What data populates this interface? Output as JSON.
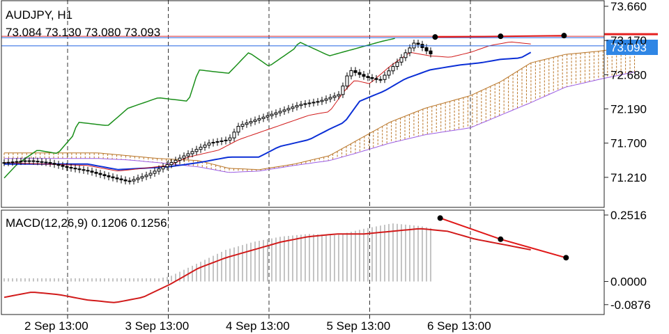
{
  "chart_data": [
    {
      "type": "candlestick",
      "title": "AUDJPY, H1",
      "ohlc_text": "73.084 73.130 73.080 73.093",
      "y_ticks": [
        "73.660",
        "73.170",
        "72.680",
        "72.190",
        "71.700",
        "71.210"
      ],
      "ylim": [
        70.78,
        73.75
      ],
      "current_price": 73.093,
      "current_price_label": "73.093",
      "x_ticks": [
        "2 Sep 13:00",
        "3 Sep 13:00",
        "4 Sep 13:00",
        "5 Sep 13:00",
        "6 Sep 13:00"
      ],
      "grid": false,
      "indicators": [
        "Ichimoku cloud",
        "Tenkan-sen",
        "Kijun-sen",
        "Chikou span"
      ],
      "trendline": {
        "x": [
          5.65,
          6.3,
          6.93
        ],
        "y": [
          73.22,
          73.23,
          73.24
        ]
      },
      "resistance_level": 73.22
    },
    {
      "type": "bar",
      "title": "MACD(12,26,9) 0.1206 0.1256",
      "y_ticks": [
        "0.2516",
        "0.0000",
        "-0.0876"
      ],
      "ylim": [
        -0.125,
        0.27
      ],
      "series": [
        {
          "values": [
            0.0,
            0.0,
            0.0,
            0.0,
            0.0,
            0.0,
            0.02,
            0.07,
            0.12,
            0.15,
            0.17,
            0.18,
            0.175,
            0.2,
            0.22,
            0.21,
            0.19,
            0.17,
            0.15,
            0.13
          ]
        },
        {
          "values": [
            -0.06,
            -0.04,
            -0.05,
            -0.07,
            -0.08,
            -0.06,
            -0.01,
            0.05,
            0.09,
            0.12,
            0.15,
            0.17,
            0.18,
            0.18,
            0.19,
            0.2,
            0.19,
            0.16,
            0.14,
            0.12
          ]
        }
      ],
      "divergence_line": {
        "x": [
          5.7,
          6.3,
          6.95
        ],
        "y": [
          0.24,
          0.16,
          0.09
        ]
      }
    }
  ]
}
